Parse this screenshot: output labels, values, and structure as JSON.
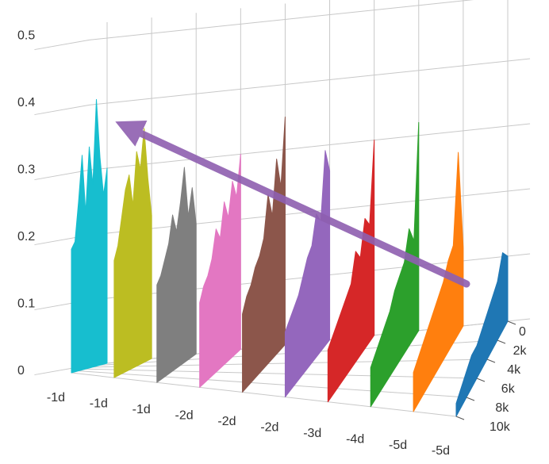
{
  "chart_data": {
    "type": "waterfall",
    "categories": [
      "-1d",
      "-1d",
      "-1d",
      "-2d",
      "-2d",
      "-2d",
      "-3d",
      "-4d",
      "-5d",
      "-5d"
    ],
    "x": [
      0,
      1000,
      2000,
      3000,
      4000,
      5000,
      6000,
      7000,
      8000,
      9000,
      10000
    ],
    "xlim": [
      0,
      10000
    ],
    "xticks": [
      {
        "value": 0,
        "label": "0"
      },
      {
        "value": 2000,
        "label": "2k"
      },
      {
        "value": 4000,
        "label": "4k"
      },
      {
        "value": 6000,
        "label": "6k"
      },
      {
        "value": 8000,
        "label": "8k"
      },
      {
        "value": 10000,
        "label": "10k"
      }
    ],
    "zlim": [
      0,
      0.5
    ],
    "zticks": [
      0,
      0.1,
      0.2,
      0.3,
      0.4,
      0.5
    ],
    "grid": true,
    "series": [
      {
        "color": "#17becf",
        "values": [
          0.3,
          0.26,
          0.32,
          0.41,
          0.28,
          0.34,
          0.24,
          0.33,
          0.26,
          0.2,
          0.19
        ]
      },
      {
        "color": "#bcbd22",
        "values": [
          0.22,
          0.28,
          0.36,
          0.3,
          0.33,
          0.25,
          0.3,
          0.28,
          0.24,
          0.2,
          0.18
        ]
      },
      {
        "color": "#7f7f7f",
        "values": [
          0.2,
          0.26,
          0.22,
          0.3,
          0.25,
          0.21,
          0.24,
          0.2,
          0.18,
          0.16,
          0.15
        ]
      },
      {
        "color": "#e377c2",
        "values": [
          0.3,
          0.24,
          0.27,
          0.22,
          0.25,
          0.2,
          0.22,
          0.18,
          0.16,
          0.15,
          0.13
        ]
      },
      {
        "color": "#8c564b",
        "values": [
          0.35,
          0.25,
          0.3,
          0.22,
          0.26,
          0.2,
          0.18,
          0.17,
          0.15,
          0.14,
          0.12
        ]
      },
      {
        "color": "#9467bd",
        "values": [
          0.26,
          0.3,
          0.2,
          0.22,
          0.18,
          0.17,
          0.15,
          0.13,
          0.12,
          0.11,
          0.1
        ]
      },
      {
        "color": "#d62728",
        "values": [
          0.3,
          0.18,
          0.2,
          0.15,
          0.17,
          0.13,
          0.12,
          0.11,
          0.1,
          0.09,
          0.08
        ]
      },
      {
        "color": "#2ca02c",
        "values": [
          0.32,
          0.15,
          0.18,
          0.14,
          0.13,
          0.12,
          0.1,
          0.09,
          0.08,
          0.07,
          0.06
        ]
      },
      {
        "color": "#ff7f0e",
        "values": [
          0.12,
          0.28,
          0.15,
          0.14,
          0.12,
          0.11,
          0.1,
          0.09,
          0.08,
          0.07,
          0.06
        ]
      },
      {
        "color": "#1f77b4",
        "values": [
          0.1,
          0.12,
          0.09,
          0.08,
          0.07,
          0.06,
          0.05,
          0.05,
          0.04,
          0.03,
          0.02
        ]
      }
    ]
  }
}
